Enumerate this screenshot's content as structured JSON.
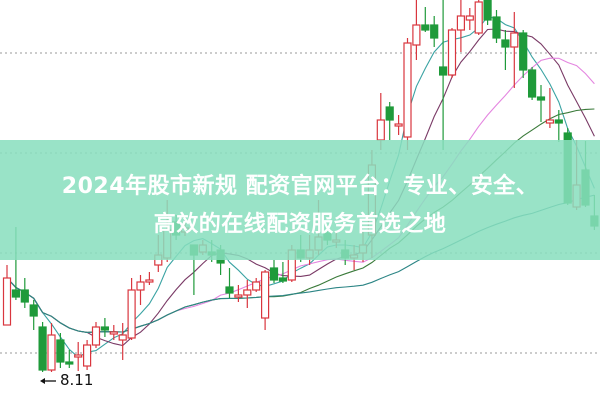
{
  "headline": {
    "line1": "2024年股市新规 配资官网平台：专业、安全、",
    "line2": "高效的在线配资服务首选之地"
  },
  "colors": {
    "banner": "#88debe",
    "up": "#d9363e",
    "down": "#1f9a3a",
    "ma_lines": [
      "#3aa3a3",
      "#7a3a66",
      "#e486e0",
      "#3a7a3a",
      "#2c8585"
    ],
    "grid": "#999999"
  },
  "chart_data": {
    "type": "candlestick",
    "title": "",
    "xlabel": "",
    "ylabel": "",
    "grid": true,
    "grid_style": "dotted horizontal",
    "annotation": {
      "label": "8.11",
      "marks": "period low",
      "candle_index": 4
    },
    "moving_averages": [
      5,
      10,
      20,
      30,
      60
    ],
    "candles": [
      [
        8.58,
        9.18,
        8.58,
        9.05
      ],
      [
        8.93,
        9.56,
        8.83,
        8.86
      ],
      [
        8.93,
        9.05,
        8.75,
        8.81
      ],
      [
        8.78,
        8.83,
        8.53,
        8.67
      ],
      [
        8.56,
        8.61,
        8.11,
        8.13
      ],
      [
        8.13,
        8.6,
        8.11,
        8.48
      ],
      [
        8.43,
        8.5,
        8.15,
        8.21
      ],
      [
        8.21,
        8.33,
        8.15,
        8.19
      ],
      [
        8.26,
        8.41,
        8.12,
        8.28
      ],
      [
        8.17,
        8.43,
        8.13,
        8.38
      ],
      [
        8.38,
        8.61,
        8.35,
        8.56
      ],
      [
        8.56,
        8.65,
        8.46,
        8.53
      ],
      [
        8.49,
        8.58,
        8.43,
        8.51
      ],
      [
        8.43,
        8.6,
        8.23,
        8.48
      ],
      [
        8.45,
        9.05,
        8.43,
        8.93
      ],
      [
        8.93,
        9.08,
        8.78,
        9.01
      ],
      [
        9.01,
        9.11,
        8.98,
        9.03
      ],
      [
        9.18,
        9.48,
        9.11,
        9.28
      ],
      [
        9.25,
        9.83,
        9.21,
        9.53
      ],
      [
        9.61,
        9.68,
        9.43,
        9.48
      ],
      [
        9.51,
        9.63,
        9.47,
        9.55
      ],
      [
        9.38,
        9.38,
        8.88,
        9.28
      ],
      [
        9.31,
        9.43,
        9.28,
        9.38
      ],
      [
        9.31,
        9.43,
        9.21,
        9.28
      ],
      [
        9.33,
        9.38,
        9.08,
        9.2
      ],
      [
        8.96,
        9.15,
        8.85,
        8.9
      ],
      [
        8.86,
        8.98,
        8.81,
        8.88
      ],
      [
        8.88,
        9.03,
        8.75,
        8.93
      ],
      [
        8.93,
        9.05,
        8.91,
        9.01
      ],
      [
        8.65,
        9.13,
        8.53,
        9.11
      ],
      [
        9.15,
        9.23,
        9.0,
        9.03
      ],
      [
        9.05,
        9.21,
        9.0,
        9.02
      ],
      [
        9.03,
        9.38,
        9.01,
        9.33
      ],
      [
        9.33,
        9.48,
        9.21,
        9.25
      ],
      [
        9.25,
        9.48,
        9.18,
        9.33
      ],
      [
        9.33,
        9.83,
        9.28,
        9.46
      ],
      [
        9.5,
        9.58,
        9.38,
        9.43
      ],
      [
        9.41,
        9.51,
        9.35,
        9.43
      ],
      [
        9.33,
        9.43,
        9.18,
        9.25
      ],
      [
        9.25,
        9.38,
        9.13,
        9.28
      ],
      [
        9.3,
        9.53,
        9.21,
        9.38
      ],
      [
        9.48,
        10.33,
        9.25,
        10.18
      ],
      [
        10.43,
        10.9,
        10.33,
        10.63
      ],
      [
        10.76,
        10.81,
        10.43,
        10.63
      ],
      [
        10.57,
        10.68,
        10.48,
        10.59
      ],
      [
        10.46,
        11.45,
        10.33,
        11.4
      ],
      [
        11.38,
        11.83,
        11.23,
        11.58
      ],
      [
        11.58,
        11.76,
        11.51,
        11.53
      ],
      [
        11.58,
        11.67,
        11.36,
        11.45
      ],
      [
        11.16,
        11.83,
        10.33,
        11.08
      ],
      [
        11.08,
        11.55,
        11.05,
        11.53
      ],
      [
        11.53,
        11.83,
        11.31,
        11.67
      ],
      [
        11.63,
        11.75,
        11.53,
        11.67
      ],
      [
        11.5,
        11.83,
        11.48,
        11.81
      ],
      [
        11.83,
        11.83,
        11.58,
        11.63
      ],
      [
        11.66,
        11.73,
        11.4,
        11.45
      ],
      [
        11.43,
        11.53,
        11.13,
        11.36
      ],
      [
        11.36,
        11.71,
        10.95,
        11.5
      ],
      [
        11.5,
        11.53,
        11.05,
        11.13
      ],
      [
        11.13,
        11.16,
        10.83,
        10.86
      ],
      [
        10.86,
        10.98,
        10.61,
        10.83
      ],
      [
        10.6,
        10.95,
        10.55,
        10.63
      ],
      [
        10.63,
        10.73,
        10.41,
        10.6
      ],
      [
        10.5,
        10.55,
        9.78,
        9.8
      ],
      [
        9.76,
        10.43,
        9.73,
        9.98
      ],
      [
        10.13,
        10.42,
        9.76,
        9.78
      ],
      [
        9.67,
        9.88,
        9.53,
        9.57
      ]
    ]
  }
}
